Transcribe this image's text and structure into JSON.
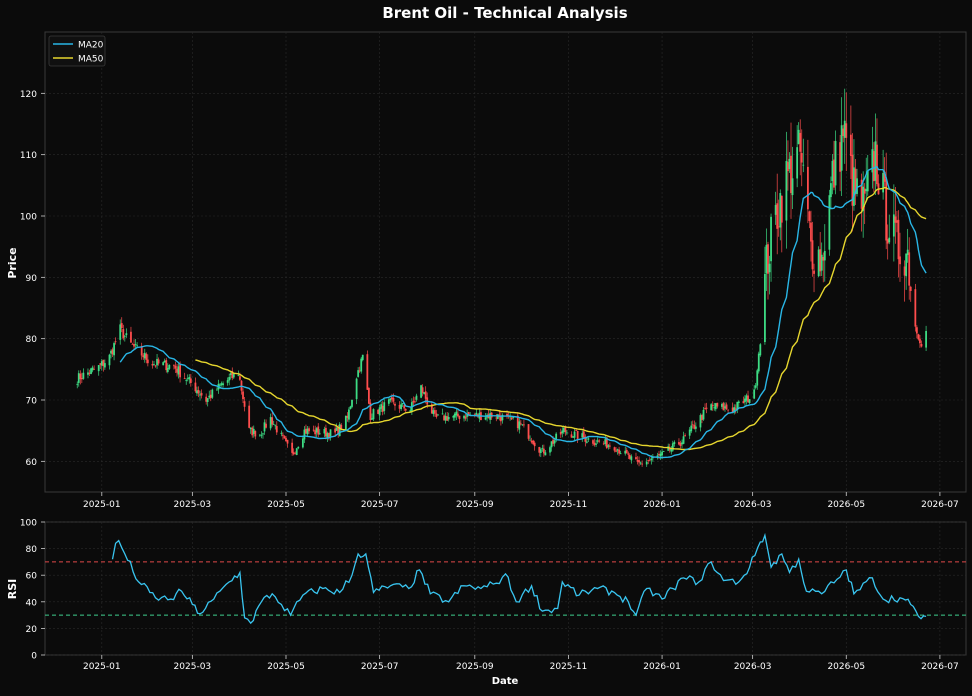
{
  "chart_data": [
    {
      "type": "line",
      "subtype": "candlestick",
      "title": "Brent Oil - Technical Analysis",
      "ylabel": "Price",
      "xlabel": "",
      "ylim": [
        55,
        130
      ],
      "xlim": [
        "2024-11-25",
        "2026-07-18"
      ],
      "y_ticks": [
        60,
        70,
        80,
        90,
        100,
        110,
        120
      ],
      "x_ticks": [
        "2025-01-01",
        "2025-03-01",
        "2025-05-01",
        "2025-07-01",
        "2025-09-01",
        "2025-11-01",
        "2026-01-01",
        "2026-03-01",
        "2026-05-01",
        "2026-07-01"
      ],
      "x_tick_labels": [
        "2025-01",
        "2025-03",
        "2025-05",
        "2025-07",
        "2025-09",
        "2025-11",
        "2026-01",
        "2026-03",
        "2026-05",
        "2026-07"
      ],
      "grid": true,
      "legend_position": "top-left",
      "up_color": "#3ddc84",
      "down_color": "#ff4d4d",
      "price_anchors": [
        [
          "2024-12-16",
          73.5
        ],
        [
          "2024-12-31",
          75.5
        ],
        [
          "2025-01-06",
          77
        ],
        [
          "2025-01-13",
          81.5
        ],
        [
          "2025-01-20",
          79
        ],
        [
          "2025-02-03",
          76
        ],
        [
          "2025-02-17",
          75.5
        ],
        [
          "2025-03-03",
          72
        ],
        [
          "2025-03-10",
          70
        ],
        [
          "2025-03-20",
          72.5
        ],
        [
          "2025-03-31",
          74.5
        ],
        [
          "2025-04-07",
          65
        ],
        [
          "2025-04-14",
          64.5
        ],
        [
          "2025-04-21",
          67
        ],
        [
          "2025-05-05",
          61
        ],
        [
          "2025-05-13",
          65
        ],
        [
          "2025-06-02",
          64.5
        ],
        [
          "2025-06-10",
          67
        ],
        [
          "2025-06-16",
          74
        ],
        [
          "2025-06-20",
          77
        ],
        [
          "2025-06-25",
          67.5
        ],
        [
          "2025-07-07",
          69.5
        ],
        [
          "2025-07-21",
          68.5
        ],
        [
          "2025-07-28",
          72
        ],
        [
          "2025-08-06",
          67
        ],
        [
          "2025-08-25",
          67.5
        ],
        [
          "2025-09-15",
          67.5
        ],
        [
          "2025-10-01",
          66
        ],
        [
          "2025-10-15",
          61.5
        ],
        [
          "2025-10-29",
          65
        ],
        [
          "2025-11-15",
          63.5
        ],
        [
          "2025-12-01",
          62.5
        ],
        [
          "2025-12-16",
          59.5
        ],
        [
          "2026-01-01",
          61
        ],
        [
          "2026-01-15",
          63.5
        ],
        [
          "2026-02-01",
          69
        ],
        [
          "2026-02-16",
          68.5
        ],
        [
          "2026-03-02",
          71
        ],
        [
          "2026-03-06",
          80
        ],
        [
          "2026-03-10",
          92
        ],
        [
          "2026-03-16",
          100
        ],
        [
          "2026-03-23",
          106
        ],
        [
          "2026-04-01",
          110
        ],
        [
          "2026-04-08",
          95
        ],
        [
          "2026-04-15",
          93
        ],
        [
          "2026-04-22",
          106
        ],
        [
          "2026-04-29",
          114
        ],
        [
          "2026-05-06",
          104
        ],
        [
          "2026-05-13",
          101
        ],
        [
          "2026-05-20",
          110
        ],
        [
          "2026-05-27",
          100
        ],
        [
          "2026-06-03",
          95
        ],
        [
          "2026-06-10",
          94
        ],
        [
          "2026-06-15",
          82
        ],
        [
          "2026-06-19",
          79.5
        ],
        [
          "2026-06-22",
          81
        ]
      ],
      "series": [
        {
          "name": "MA20",
          "color": "#29b6e6",
          "start": "2025-01-13",
          "end": "2026-06-22"
        },
        {
          "name": "MA50",
          "color": "#e6d62e",
          "start": "2025-03-03",
          "end": "2026-06-22"
        }
      ]
    },
    {
      "type": "line",
      "ylabel": "RSI",
      "xlabel": "Date",
      "ylim": [
        0,
        100
      ],
      "y_ticks": [
        0,
        20,
        40,
        60,
        80,
        100
      ],
      "x_ticks": [
        "2025-01-01",
        "2025-03-01",
        "2025-05-01",
        "2025-07-01",
        "2025-09-01",
        "2025-11-01",
        "2026-01-01",
        "2026-03-01",
        "2026-05-01",
        "2026-07-01"
      ],
      "x_tick_labels": [
        "2025-01",
        "2025-03",
        "2025-05",
        "2025-07",
        "2025-09",
        "2025-11",
        "2026-01",
        "2026-03",
        "2026-05",
        "2026-07"
      ],
      "grid": true,
      "reference_lines": [
        {
          "value": 70,
          "color": "#e04848",
          "style": "dashed"
        },
        {
          "value": 30,
          "color": "#3fcf8e",
          "style": "dashed"
        }
      ],
      "series": [
        {
          "name": "RSI",
          "color": "#39c5f0",
          "points": [
            [
              "2025-01-08",
              72
            ],
            [
              "2025-01-10",
              84
            ],
            [
              "2025-01-12",
              86
            ],
            [
              "2025-01-16",
              76
            ],
            [
              "2025-01-25",
              55
            ],
            [
              "2025-02-05",
              43
            ],
            [
              "2025-02-15",
              42
            ],
            [
              "2025-02-22",
              48
            ],
            [
              "2025-03-01",
              38
            ],
            [
              "2025-03-06",
              31
            ],
            [
              "2025-03-15",
              42
            ],
            [
              "2025-03-25",
              55
            ],
            [
              "2025-04-01",
              62
            ],
            [
              "2025-04-04",
              28
            ],
            [
              "2025-04-08",
              24
            ],
            [
              "2025-04-15",
              40
            ],
            [
              "2025-04-22",
              46
            ],
            [
              "2025-04-28",
              38
            ],
            [
              "2025-05-04",
              30
            ],
            [
              "2025-05-12",
              45
            ],
            [
              "2025-05-25",
              50
            ],
            [
              "2025-06-05",
              47
            ],
            [
              "2025-06-13",
              60
            ],
            [
              "2025-06-17",
              76
            ],
            [
              "2025-06-22",
              76
            ],
            [
              "2025-06-27",
              47
            ],
            [
              "2025-07-08",
              52
            ],
            [
              "2025-07-20",
              50
            ],
            [
              "2025-07-27",
              64
            ],
            [
              "2025-08-03",
              46
            ],
            [
              "2025-08-15",
              40
            ],
            [
              "2025-08-25",
              52
            ],
            [
              "2025-09-05",
              50
            ],
            [
              "2025-09-15",
              54
            ],
            [
              "2025-09-21",
              61
            ],
            [
              "2025-09-28",
              40
            ],
            [
              "2025-10-08",
              52
            ],
            [
              "2025-10-15",
              33
            ],
            [
              "2025-10-25",
              35
            ],
            [
              "2025-10-28",
              55
            ],
            [
              "2025-11-08",
              45
            ],
            [
              "2025-11-20",
              50
            ],
            [
              "2025-12-01",
              47
            ],
            [
              "2025-12-10",
              40
            ],
            [
              "2025-12-15",
              30
            ],
            [
              "2025-12-22",
              50
            ],
            [
              "2026-01-01",
              42
            ],
            [
              "2026-01-08",
              50
            ],
            [
              "2026-01-15",
              58
            ],
            [
              "2026-01-25",
              55
            ],
            [
              "2026-02-02",
              70
            ],
            [
              "2026-02-10",
              56
            ],
            [
              "2026-02-20",
              55
            ],
            [
              "2026-02-27",
              66
            ],
            [
              "2026-03-06",
              85
            ],
            [
              "2026-03-09",
              90
            ],
            [
              "2026-03-13",
              66
            ],
            [
              "2026-03-20",
              76
            ],
            [
              "2026-03-25",
              62
            ],
            [
              "2026-03-31",
              72
            ],
            [
              "2026-04-05",
              48
            ],
            [
              "2026-04-15",
              46
            ],
            [
              "2026-04-25",
              57
            ],
            [
              "2026-05-01",
              64
            ],
            [
              "2026-05-06",
              46
            ],
            [
              "2026-05-18",
              58
            ],
            [
              "2026-05-25",
              42
            ],
            [
              "2026-06-05",
              43
            ],
            [
              "2026-06-12",
              38
            ],
            [
              "2026-06-17",
              29
            ],
            [
              "2026-06-22",
              29
            ]
          ]
        }
      ]
    }
  ]
}
